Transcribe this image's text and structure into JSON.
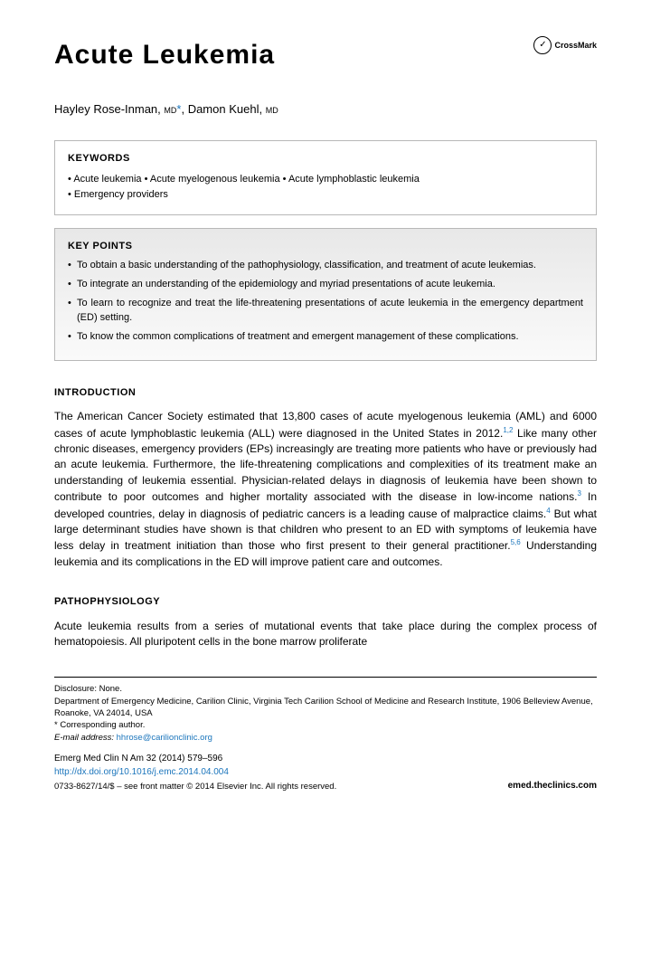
{
  "title": "Acute Leukemia",
  "crossmark": {
    "label": "CrossMark",
    "icon_glyph": "✓"
  },
  "authors_html": "Hayley Rose-Inman, <deg>MD</deg><ast>*</ast>, Damon Kuehl, <deg>MD</deg>",
  "authors": [
    {
      "name": "Hayley Rose-Inman",
      "degree": "MD",
      "corresponding": true
    },
    {
      "name": "Damon Kuehl",
      "degree": "MD",
      "corresponding": false
    }
  ],
  "keywords": {
    "heading": "KEYWORDS",
    "items": [
      "Acute leukemia",
      "Acute myelogenous leukemia",
      "Acute lymphoblastic leukemia",
      "Emergency providers"
    ]
  },
  "keypoints": {
    "heading": "KEY POINTS",
    "items": [
      "To obtain a basic understanding of the pathophysiology, classification, and treatment of acute leukemias.",
      "To integrate an understanding of the epidemiology and myriad presentations of acute leukemia.",
      "To learn to recognize and treat the life-threatening presentations of acute leukemia in the emergency department (ED) setting.",
      "To know the common complications of treatment and emergent management of these complications."
    ]
  },
  "sections": {
    "introduction": {
      "heading": "INTRODUCTION",
      "text_parts": [
        "The American Cancer Society estimated that 13,800 cases of acute myelogenous leukemia (AML) and 6000 cases of acute lymphoblastic leukemia (ALL) were diagnosed in the United States in 2012.",
        " Like many other chronic diseases, emergency providers (EPs) increasingly are treating more patients who have or previously had an acute leukemia. Furthermore, the life-threatening complications and complexities of its treatment make an understanding of leukemia essential. Physician-related delays in diagnosis of leukemia have been shown to contribute to poor outcomes and higher mortality associated with the disease in low-income nations.",
        " In developed countries, delay in diagnosis of pediatric cancers is a leading cause of malpractice claims.",
        " But what large determinant studies have shown is that children who present to an ED with symptoms of leukemia have less delay in treatment initiation than those who first present to their general practitioner.",
        " Understanding leukemia and its complications in the ED will improve patient care and outcomes."
      ],
      "refs": [
        "1,2",
        "3",
        "4",
        "5,6"
      ]
    },
    "pathophysiology": {
      "heading": "PATHOPHYSIOLOGY",
      "text": "Acute leukemia results from a series of mutational events that take place during the complex process of hematopoiesis. All pluripotent cells in the bone marrow proliferate"
    }
  },
  "footer": {
    "disclosure": "Disclosure: None.",
    "affiliation": "Department of Emergency Medicine, Carilion Clinic, Virginia Tech Carilion School of Medicine and Research Institute, 1906 Belleview Avenue, Roanoke, VA 24014, USA",
    "corresponding_label": "* Corresponding author.",
    "email_label": "E-mail address:",
    "email": "hhrose@carilionclinic.org",
    "journal": "Emerg Med Clin N Am 32 (2014) 579–596",
    "doi": "http://dx.doi.org/10.1016/j.emc.2014.04.004",
    "site": "emed.theclinics.com",
    "copyright": "0733-8627/14/$ – see front matter © 2014 Elsevier Inc. All rights reserved."
  },
  "colors": {
    "link": "#1b75bc",
    "box_border": "#b8b8b8",
    "kp_bg_top": "#e8e8e8",
    "kp_bg_bottom": "#fafafa",
    "text": "#000000"
  },
  "fonts": {
    "title_size": 30,
    "body_size": 12,
    "box_text_size": 11,
    "footer_size": 9.5
  }
}
